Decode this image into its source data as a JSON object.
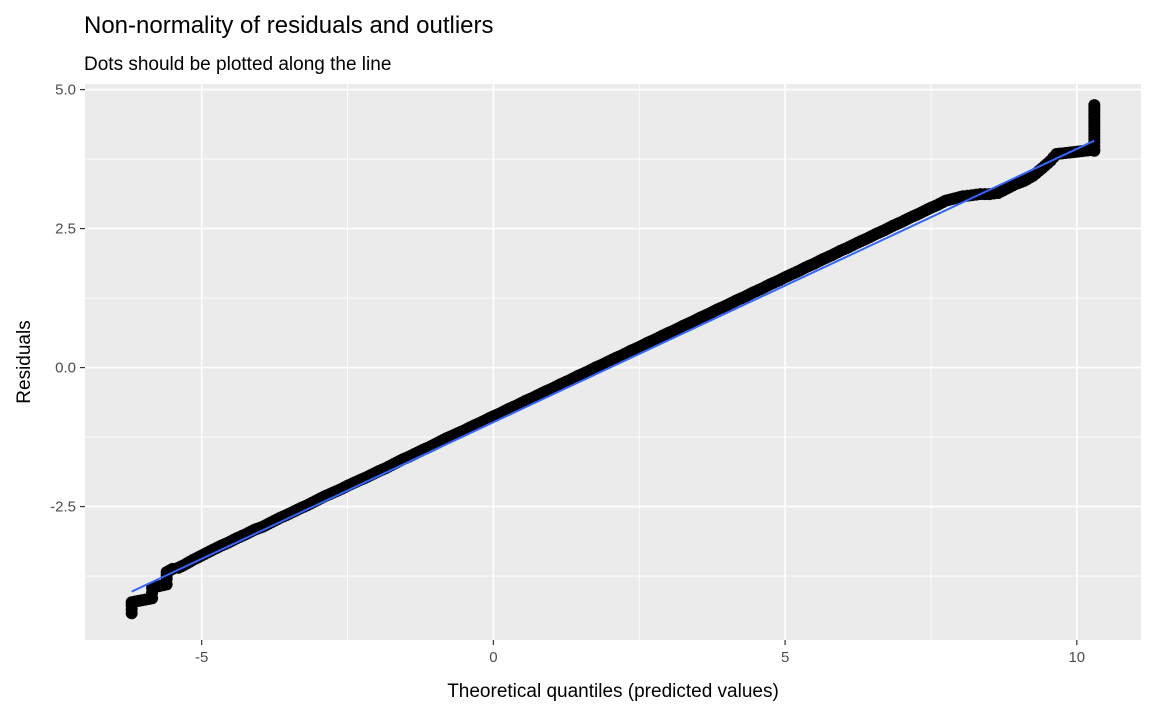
{
  "chart_data": {
    "type": "scatter",
    "title": "Non-normality of residuals and outliers",
    "subtitle": "Dots should be plotted along the line",
    "xlabel": "Theoretical quantiles (predicted values)",
    "ylabel": "Residuals",
    "xlim": [
      -7.0,
      11.1
    ],
    "ylim": [
      -4.9,
      5.1
    ],
    "x_ticks": [
      -5,
      0,
      5,
      10
    ],
    "x_tick_labels": [
      "-5",
      "0",
      "5",
      "10"
    ],
    "y_ticks": [
      -2.5,
      0.0,
      2.5,
      5.0
    ],
    "y_tick_labels": [
      "-2.5",
      "0.0",
      "2.5",
      "5.0"
    ],
    "grid": true,
    "panel_background": "#ebebeb",
    "grid_color": "#ffffff",
    "point_color": "#000000",
    "line_color": "#3366ff",
    "reference_line": {
      "x": [
        -6.2,
        10.3
      ],
      "y": [
        -4.03,
        4.08
      ]
    },
    "series": [
      {
        "x": [
          -6.2,
          -6.2,
          -6.2,
          -6.2,
          -5.85,
          -5.85,
          -5.85,
          -5.6,
          -5.6,
          -5.6,
          -5.5,
          -5.4,
          -5.3,
          -5.15,
          -5.0,
          -4.85,
          -4.7,
          -4.55,
          -4.4,
          -4.25,
          -4.1,
          -3.95,
          -3.8,
          -3.65,
          -3.5,
          -3.35,
          -3.2,
          -3.05,
          -2.9,
          -2.75,
          -2.6,
          -2.45,
          -2.3,
          -2.15,
          -2.0,
          -1.85,
          -1.7,
          -1.55,
          -1.4,
          -1.25,
          -1.1,
          -0.95,
          -0.8,
          -0.65,
          -0.5,
          -0.35,
          -0.2,
          -0.05,
          0.1,
          0.25,
          0.4,
          0.55,
          0.7,
          0.85,
          1.0,
          1.15,
          1.3,
          1.45,
          1.6,
          1.75,
          1.9,
          2.05,
          2.2,
          2.35,
          2.5,
          2.65,
          2.8,
          2.95,
          3.1,
          3.25,
          3.4,
          3.55,
          3.7,
          3.85,
          4.0,
          4.15,
          4.3,
          4.45,
          4.6,
          4.75,
          4.9,
          5.05,
          5.2,
          5.35,
          5.5,
          5.65,
          5.8,
          5.95,
          6.1,
          6.25,
          6.4,
          6.55,
          6.7,
          6.85,
          7.0,
          7.15,
          7.3,
          7.45,
          7.6,
          7.75,
          7.9,
          8.05,
          8.2,
          8.35,
          8.5,
          8.65,
          8.8,
          8.95,
          9.1,
          9.25,
          9.4,
          9.55,
          9.65,
          10.3,
          10.3,
          10.3,
          10.3,
          10.3,
          10.3
        ],
        "y": [
          -4.42,
          -4.35,
          -4.28,
          -4.22,
          -4.15,
          -4.05,
          -3.96,
          -3.9,
          -3.8,
          -3.68,
          -3.62,
          -3.6,
          -3.55,
          -3.46,
          -3.38,
          -3.3,
          -3.22,
          -3.15,
          -3.07,
          -3.0,
          -2.92,
          -2.86,
          -2.78,
          -2.7,
          -2.63,
          -2.55,
          -2.48,
          -2.4,
          -2.32,
          -2.25,
          -2.18,
          -2.1,
          -2.03,
          -1.96,
          -1.88,
          -1.81,
          -1.73,
          -1.65,
          -1.58,
          -1.5,
          -1.43,
          -1.35,
          -1.27,
          -1.2,
          -1.13,
          -1.05,
          -0.98,
          -0.9,
          -0.83,
          -0.75,
          -0.68,
          -0.6,
          -0.53,
          -0.45,
          -0.38,
          -0.3,
          -0.23,
          -0.15,
          -0.08,
          0.0,
          0.07,
          0.15,
          0.22,
          0.3,
          0.37,
          0.45,
          0.52,
          0.6,
          0.67,
          0.75,
          0.82,
          0.9,
          0.97,
          1.05,
          1.12,
          1.2,
          1.27,
          1.35,
          1.42,
          1.5,
          1.57,
          1.65,
          1.72,
          1.8,
          1.87,
          1.95,
          2.02,
          2.1,
          2.17,
          2.25,
          2.32,
          2.4,
          2.47,
          2.55,
          2.62,
          2.7,
          2.77,
          2.85,
          2.92,
          3.0,
          3.04,
          3.08,
          3.1,
          3.12,
          3.12,
          3.14,
          3.22,
          3.3,
          3.36,
          3.45,
          3.58,
          3.72,
          3.84,
          3.92,
          4.05,
          4.28,
          4.55,
          4.72,
          3.9
        ]
      }
    ]
  }
}
